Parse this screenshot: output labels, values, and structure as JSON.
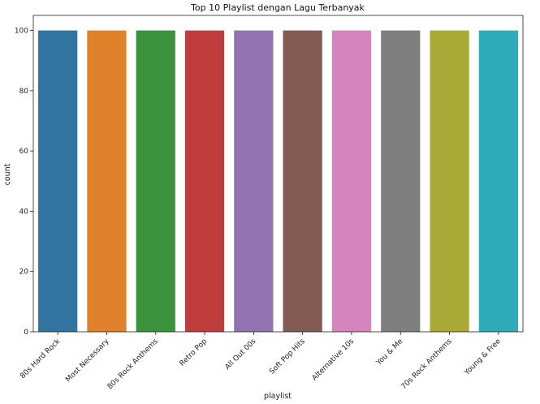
{
  "chart_data": {
    "type": "bar",
    "title": "Top 10 Playlist dengan Lagu Terbanyak",
    "xlabel": "playlist",
    "ylabel": "count",
    "categories": [
      "80s Hard Rock",
      "Most Necessary",
      "80s Rock Anthems",
      "Retro Pop",
      "All Out 00s",
      "Soft Pop Hits",
      "Alternative 10s",
      "You & Me",
      "70s Rock Anthems",
      "Young & Free"
    ],
    "values": [
      100,
      100,
      100,
      100,
      100,
      100,
      100,
      100,
      100,
      100
    ],
    "colors": [
      "#3274a1",
      "#e1812c",
      "#3a923a",
      "#c03d3e",
      "#9372b2",
      "#845b53",
      "#d684bd",
      "#7f7f7f",
      "#a9aa35",
      "#2eabb8"
    ],
    "ylim": [
      0,
      105
    ],
    "yticks": [
      0,
      20,
      40,
      60,
      80,
      100
    ],
    "grid": false,
    "legend": "none"
  }
}
